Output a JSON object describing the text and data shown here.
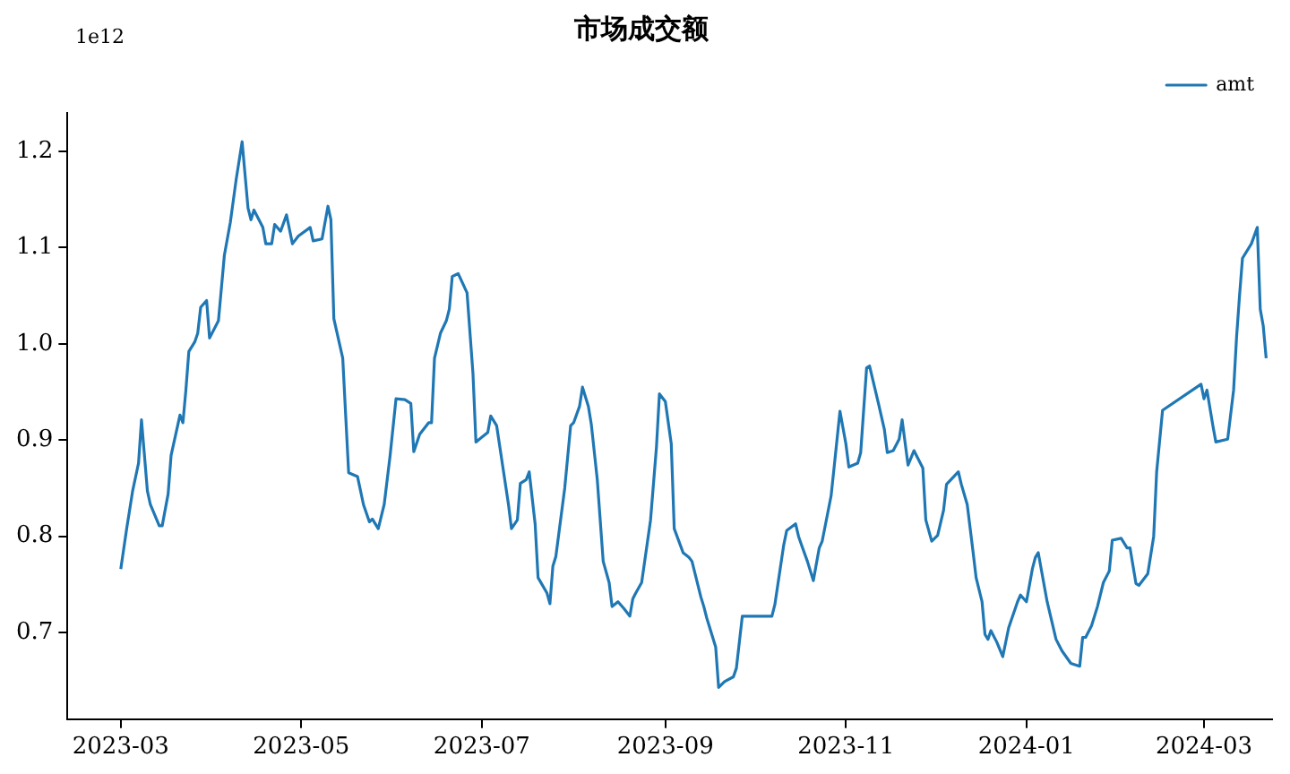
{
  "chart_data": {
    "type": "line",
    "title": "市场成交额",
    "annotations": [
      "1e12"
    ],
    "xlim": [
      "2023-02-11",
      "2024-03-24"
    ],
    "xticks": [
      "2023-03",
      "2023-05",
      "2023-07",
      "2023-09",
      "2023-11",
      "2024-01",
      "2024-03"
    ],
    "ylim": [
      0.61,
      1.24
    ],
    "yticks": [
      0.7,
      0.8,
      0.9,
      {
        "value": 1,
        "label": "1.0"
      },
      1.1,
      1.2
    ],
    "grid": false,
    "legend": "top right",
    "marker": "none",
    "line_style": "solid",
    "x": [
      "2023-03-01",
      "2023-03-03",
      "2023-03-05",
      "2023-03-07",
      "2023-03-08",
      "2023-03-10",
      "2023-03-11",
      "2023-03-14",
      "2023-03-15",
      "2023-03-17",
      "2023-03-18",
      "2023-03-21",
      "2023-03-22",
      "2023-03-23",
      "2023-03-24",
      "2023-03-26",
      "2023-03-27",
      "2023-03-28",
      "2023-03-30",
      "2023-03-31",
      "2023-04-03",
      "2023-04-05",
      "2023-04-07",
      "2023-04-09",
      "2023-04-11",
      "2023-04-13",
      "2023-04-14",
      "2023-04-15",
      "2023-04-18",
      "2023-04-19",
      "2023-04-21",
      "2023-04-22",
      "2023-04-24",
      "2023-04-26",
      "2023-04-28",
      "2023-04-30",
      "2023-05-04",
      "2023-05-05",
      "2023-05-08",
      "2023-05-10",
      "2023-05-11",
      "2023-05-12",
      "2023-05-15",
      "2023-05-16",
      "2023-05-17",
      "2023-05-20",
      "2023-05-22",
      "2023-05-24",
      "2023-05-25",
      "2023-05-27",
      "2023-05-29",
      "2023-05-31",
      "2023-06-02",
      "2023-06-05",
      "2023-06-07",
      "2023-06-08",
      "2023-06-10",
      "2023-06-13",
      "2023-06-14",
      "2023-06-15",
      "2023-06-17",
      "2023-06-19",
      "2023-06-20",
      "2023-06-21",
      "2023-06-23",
      "2023-06-26",
      "2023-06-28",
      "2023-06-29",
      "2023-07-01",
      "2023-07-03",
      "2023-07-04",
      "2023-07-06",
      "2023-07-08",
      "2023-07-10",
      "2023-07-11",
      "2023-07-13",
      "2023-07-14",
      "2023-07-16",
      "2023-07-17",
      "2023-07-19",
      "2023-07-20",
      "2023-07-23",
      "2023-07-24",
      "2023-07-25",
      "2023-07-26",
      "2023-07-29",
      "2023-07-31",
      "2023-08-01",
      "2023-08-03",
      "2023-08-04",
      "2023-08-06",
      "2023-08-07",
      "2023-08-09",
      "2023-08-11",
      "2023-08-13",
      "2023-08-14",
      "2023-08-16",
      "2023-08-18",
      "2023-08-20",
      "2023-08-21",
      "2023-08-22",
      "2023-08-24",
      "2023-08-27",
      "2023-08-29",
      "2023-08-30",
      "2023-09-01",
      "2023-09-03",
      "2023-09-04",
      "2023-09-07",
      "2023-09-09",
      "2023-09-10",
      "2023-09-13",
      "2023-09-14",
      "2023-09-15",
      "2023-09-18",
      "2023-09-19",
      "2023-09-21",
      "2023-09-24",
      "2023-09-25",
      "2023-09-27",
      "2023-10-07",
      "2023-10-08",
      "2023-10-11",
      "2023-10-12",
      "2023-10-15",
      "2023-10-16",
      "2023-10-17",
      "2023-10-19",
      "2023-10-21",
      "2023-10-23",
      "2023-10-24",
      "2023-10-27",
      "2023-10-28",
      "2023-10-30",
      "2023-11-01",
      "2023-11-02",
      "2023-11-05",
      "2023-11-06",
      "2023-11-08",
      "2023-11-09",
      "2023-11-12",
      "2023-11-14",
      "2023-11-15",
      "2023-11-17",
      "2023-11-19",
      "2023-11-20",
      "2023-11-22",
      "2023-11-24",
      "2023-11-27",
      "2023-11-28",
      "2023-11-30",
      "2023-12-02",
      "2023-12-04",
      "2023-12-05",
      "2023-12-09",
      "2023-12-10",
      "2023-12-12",
      "2023-12-14",
      "2023-12-15",
      "2023-12-17",
      "2023-12-18",
      "2023-12-19",
      "2023-12-20",
      "2023-12-22",
      "2023-12-24",
      "2023-12-26",
      "2023-12-29",
      "2023-12-30",
      "2024-01-01",
      "2024-01-03",
      "2024-01-04",
      "2024-01-05",
      "2024-01-08",
      "2024-01-11",
      "2024-01-13",
      "2024-01-16",
      "2024-01-19",
      "2024-01-20",
      "2024-01-21",
      "2024-01-23",
      "2024-01-25",
      "2024-01-27",
      "2024-01-29",
      "2024-01-30",
      "2024-02-02",
      "2024-02-04",
      "2024-02-05",
      "2024-02-07",
      "2024-02-08",
      "2024-02-11",
      "2024-02-13",
      "2024-02-14",
      "2024-02-16",
      "2024-02-29",
      "2024-03-01",
      "2024-03-02",
      "2024-03-04",
      "2024-03-05",
      "2024-03-09",
      "2024-03-11",
      "2024-03-12",
      "2024-03-13",
      "2024-03-14",
      "2024-03-17",
      "2024-03-19",
      "2024-03-20",
      "2024-03-21",
      "2024-03-22"
    ],
    "series": [
      {
        "name": "amt",
        "color": "#1f77b4",
        "values": [
          0.766,
          0.808,
          0.847,
          0.876,
          0.921,
          0.847,
          0.833,
          0.811,
          0.811,
          0.844,
          0.884,
          0.926,
          0.918,
          0.952,
          0.992,
          1.002,
          1.011,
          1.038,
          1.045,
          1.006,
          1.024,
          1.092,
          1.126,
          1.171,
          1.21,
          1.141,
          1.129,
          1.139,
          1.121,
          1.104,
          1.104,
          1.124,
          1.117,
          1.134,
          1.104,
          1.112,
          1.121,
          1.107,
          1.109,
          1.143,
          1.129,
          1.026,
          0.985,
          0.925,
          0.866,
          0.862,
          0.833,
          0.815,
          0.818,
          0.808,
          0.833,
          0.884,
          0.943,
          0.942,
          0.938,
          0.888,
          0.906,
          0.918,
          0.918,
          0.985,
          1.011,
          1.024,
          1.036,
          1.07,
          1.073,
          1.053,
          0.969,
          0.898,
          0.903,
          0.908,
          0.925,
          0.915,
          0.874,
          0.833,
          0.808,
          0.817,
          0.855,
          0.859,
          0.867,
          0.813,
          0.757,
          0.741,
          0.73,
          0.769,
          0.779,
          0.85,
          0.915,
          0.918,
          0.935,
          0.955,
          0.935,
          0.916,
          0.859,
          0.774,
          0.752,
          0.727,
          0.732,
          0.725,
          0.717,
          0.735,
          0.741,
          0.752,
          0.817,
          0.893,
          0.948,
          0.94,
          0.896,
          0.808,
          0.783,
          0.778,
          0.774,
          0.737,
          0.727,
          0.715,
          0.685,
          0.643,
          0.649,
          0.654,
          0.663,
          0.717,
          0.717,
          0.729,
          0.791,
          0.806,
          0.813,
          0.8,
          0.791,
          0.774,
          0.754,
          0.788,
          0.795,
          0.842,
          0.871,
          0.93,
          0.896,
          0.872,
          0.876,
          0.887,
          0.975,
          0.977,
          0.938,
          0.911,
          0.887,
          0.889,
          0.901,
          0.921,
          0.874,
          0.889,
          0.871,
          0.817,
          0.795,
          0.801,
          0.827,
          0.854,
          0.867,
          0.854,
          0.833,
          0.783,
          0.757,
          0.732,
          0.698,
          0.693,
          0.702,
          0.69,
          0.675,
          0.705,
          0.732,
          0.739,
          0.732,
          0.766,
          0.778,
          0.783,
          0.732,
          0.693,
          0.681,
          0.668,
          0.665,
          0.695,
          0.695,
          0.707,
          0.727,
          0.752,
          0.764,
          0.796,
          0.798,
          0.788,
          0.788,
          0.751,
          0.749,
          0.761,
          0.8,
          0.867,
          0.931,
          0.958,
          0.943,
          0.952,
          0.915,
          0.898,
          0.901,
          0.952,
          1.007,
          1.05,
          1.089,
          1.104,
          1.121,
          1.036,
          1.019,
          0.985
        ]
      }
    ]
  }
}
